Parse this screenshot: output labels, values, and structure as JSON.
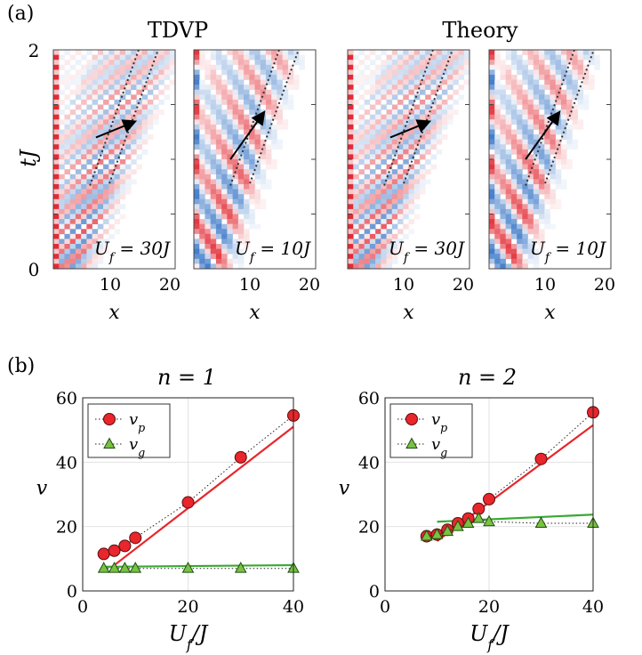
{
  "panel_a": {
    "label": "(a)",
    "group_titles": [
      "TDVP",
      "Theory"
    ],
    "ylabel": "tJ",
    "y_ticks": [
      "0",
      "2"
    ],
    "x_ticks": [
      "10",
      "20"
    ],
    "xlabel": "x",
    "heatmaps": [
      {
        "label": "U_f = 30J",
        "strength": 30
      },
      {
        "label": "U_f = 10J",
        "strength": 10
      },
      {
        "label": "U_f = 30J",
        "strength": 30
      },
      {
        "label": "U_f = 10J",
        "strength": 10
      }
    ],
    "colors": {
      "positive": "#e0202a",
      "negative": "#2f6fc4"
    }
  },
  "chart_data": [
    {
      "type": "line",
      "title": "n = 1",
      "xlabel": "U_f/J",
      "ylabel": "v",
      "xlim": [
        0,
        40
      ],
      "ylim": [
        0,
        60
      ],
      "x_ticks": [
        0,
        20,
        40
      ],
      "y_ticks": [
        0,
        20,
        40,
        60
      ],
      "grid": true,
      "legend_position": "top-left",
      "series": [
        {
          "name": "v_p",
          "marker": "circle",
          "color": "#e8262c",
          "x": [
            4,
            6,
            8,
            10,
            20,
            30,
            40
          ],
          "y": [
            11.5,
            12.5,
            14,
            16.5,
            27.5,
            41.5,
            54.5
          ]
        },
        {
          "name": "v_g",
          "marker": "triangle",
          "color": "#7ac143",
          "x": [
            4,
            6,
            8,
            10,
            20,
            30,
            40
          ],
          "y": [
            7,
            7,
            7,
            7,
            7,
            7,
            7
          ]
        }
      ],
      "theory_lines": [
        {
          "series": "v_p",
          "color": "#e8262c",
          "x": [
            6,
            40
          ],
          "y": [
            8,
            51
          ]
        },
        {
          "series": "v_g",
          "color": "#3aa832",
          "x": [
            4,
            40
          ],
          "y": [
            7.5,
            8
          ]
        }
      ]
    },
    {
      "type": "line",
      "title": "n = 2",
      "xlabel": "U_f/J",
      "ylabel": "v",
      "xlim": [
        0,
        40
      ],
      "ylim": [
        0,
        60
      ],
      "x_ticks": [
        0,
        20,
        40
      ],
      "y_ticks": [
        0,
        20,
        40,
        60
      ],
      "grid": true,
      "legend_position": "top-left",
      "series": [
        {
          "name": "v_p",
          "marker": "circle",
          "color": "#e8262c",
          "x": [
            8,
            10,
            12,
            14,
            16,
            18,
            20,
            30,
            40
          ],
          "y": [
            17,
            17.5,
            19,
            21,
            22.5,
            25.5,
            28.5,
            41,
            55.5
          ]
        },
        {
          "name": "v_g",
          "marker": "triangle",
          "color": "#7ac143",
          "x": [
            8,
            10,
            12,
            14,
            16,
            18,
            20,
            30,
            40
          ],
          "y": [
            17,
            17.5,
            18.5,
            20,
            21,
            22.5,
            21.5,
            21,
            21
          ]
        }
      ],
      "theory_lines": [
        {
          "series": "v_p",
          "color": "#e8262c",
          "x": [
            10,
            40
          ],
          "y": [
            15.5,
            51.5
          ]
        },
        {
          "series": "v_g",
          "color": "#3aa832",
          "x": [
            10,
            40
          ],
          "y": [
            21.5,
            23.7
          ]
        }
      ]
    }
  ],
  "panel_b": {
    "label": "(b)"
  }
}
